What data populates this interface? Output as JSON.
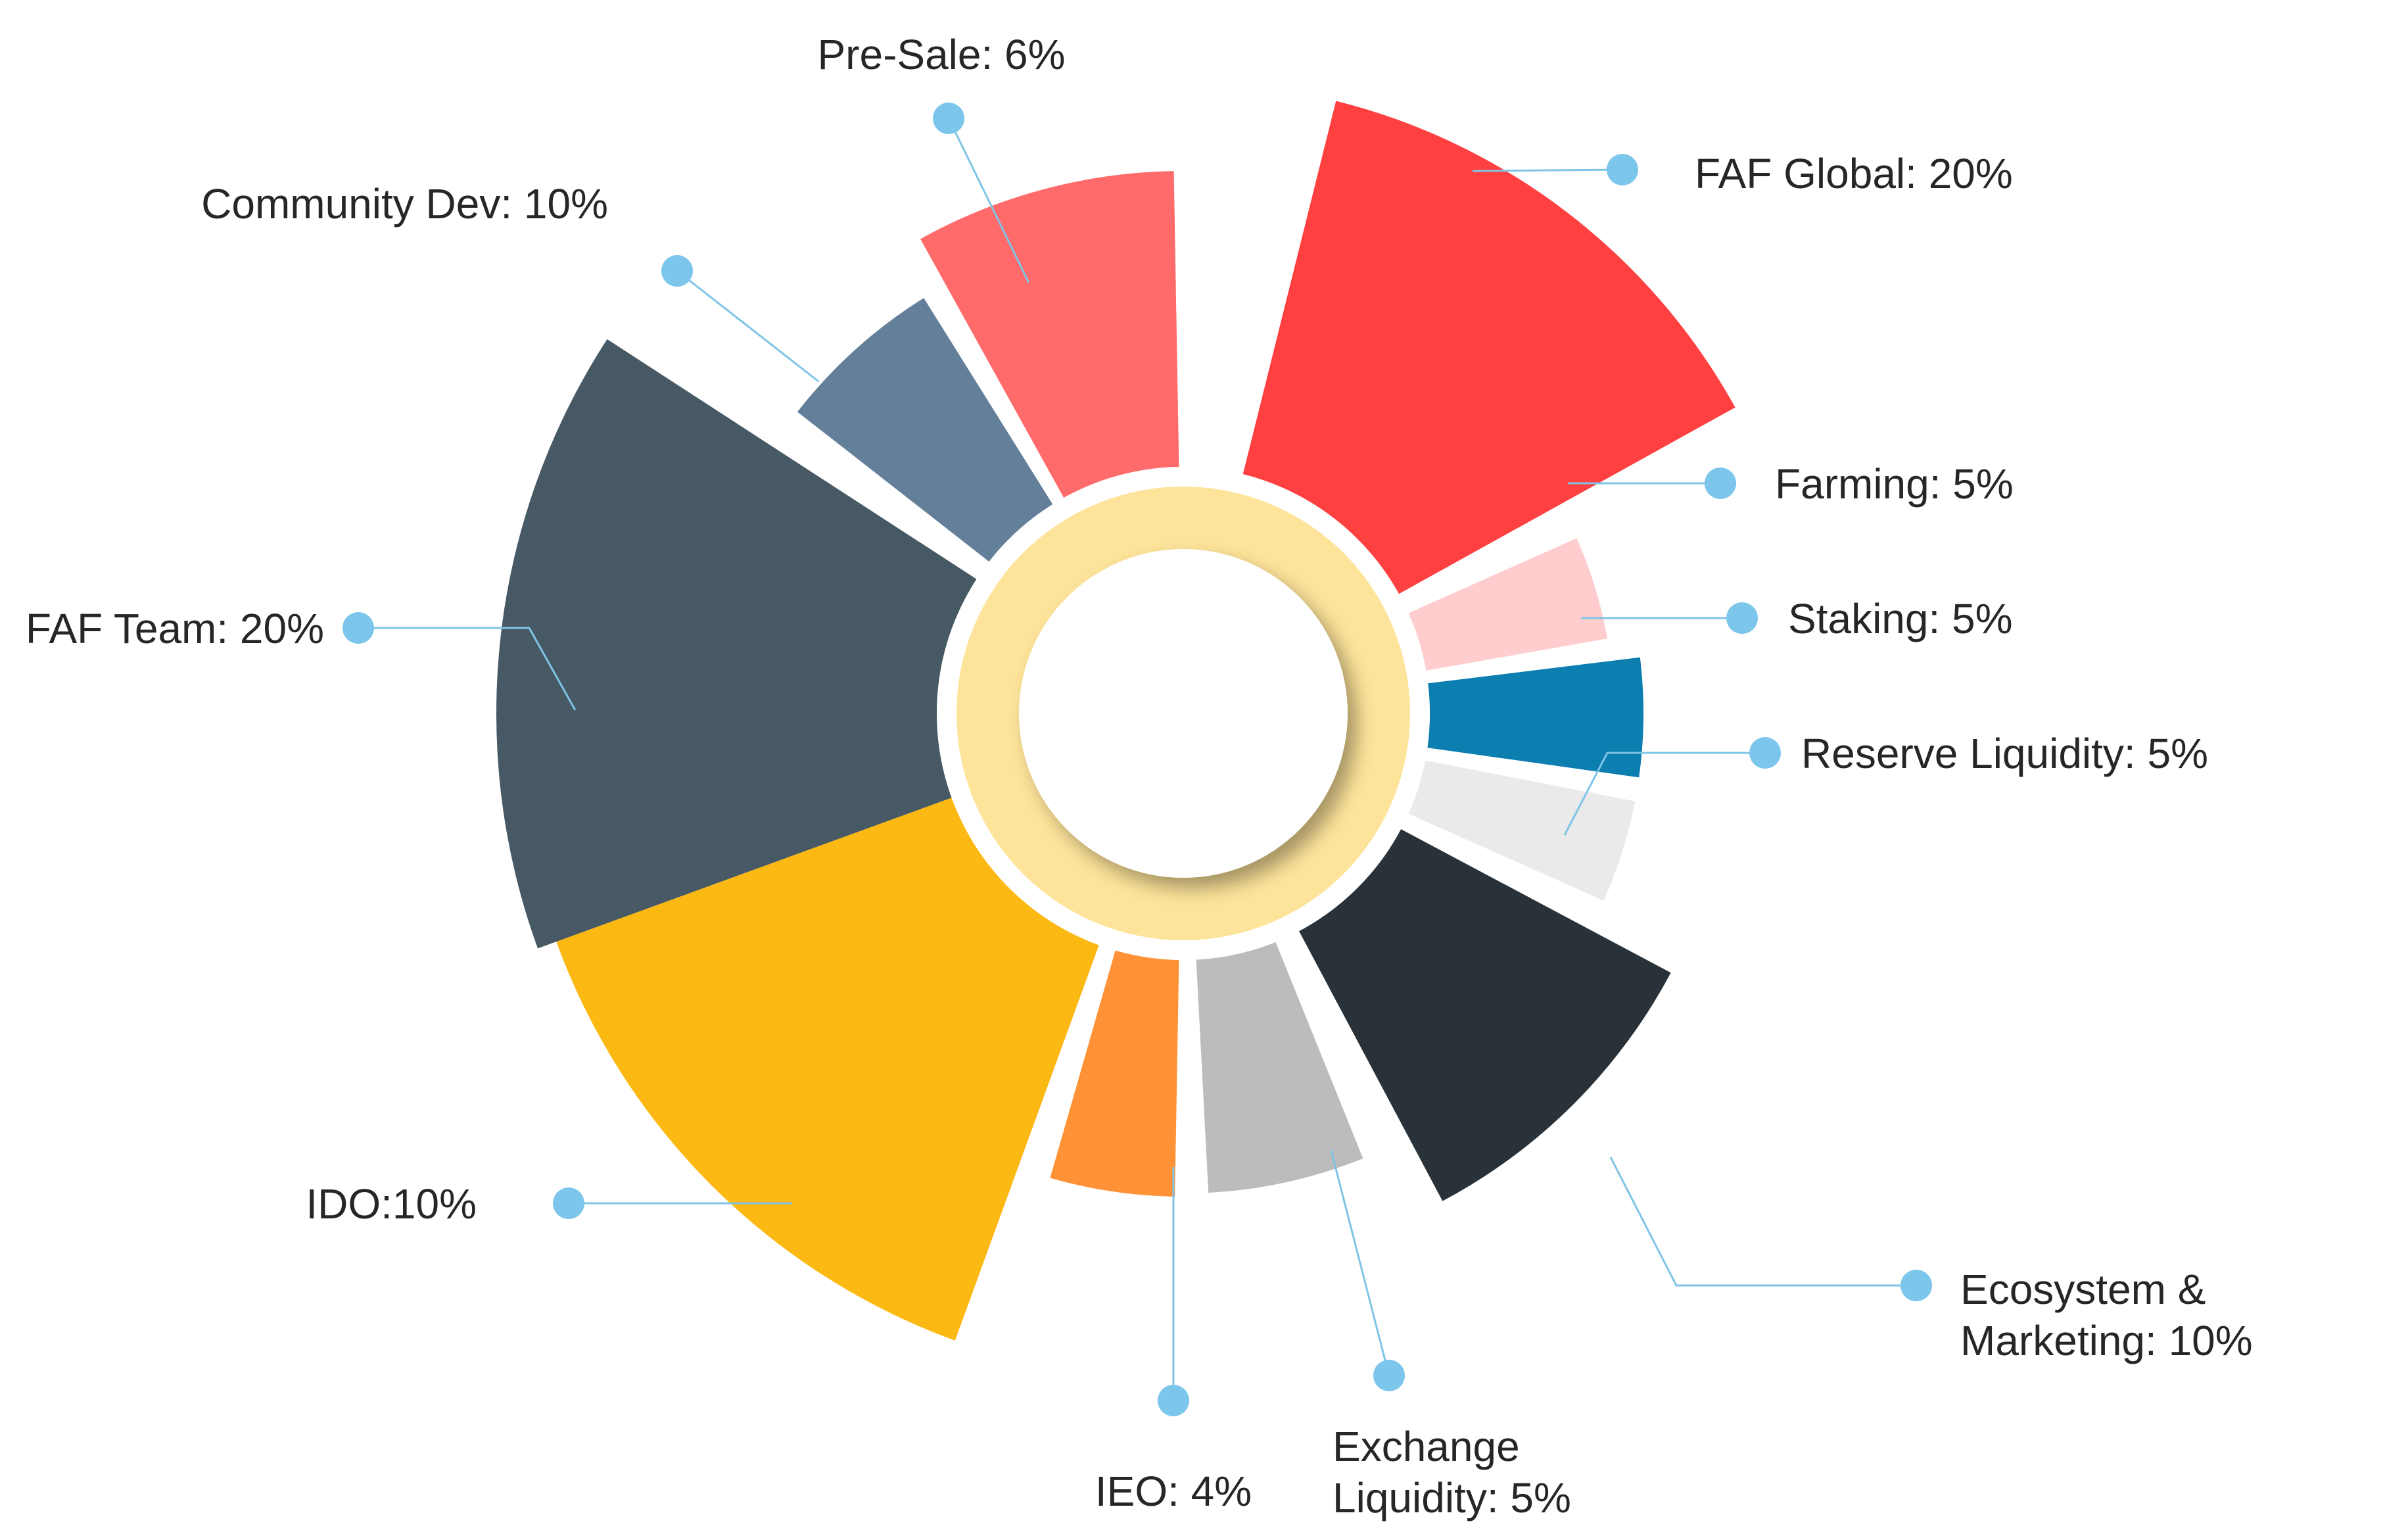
{
  "chart_data": {
    "type": "pie",
    "variant": "polar-area (rose) with inner ring",
    "title": "",
    "slices": [
      {
        "label_lines": [
          "FAF Global: 20%"
        ],
        "value": 20,
        "color": "#ff4040"
      },
      {
        "label_lines": [
          "Farming: 5%"
        ],
        "value": 5,
        "color": "#ffcdcd"
      },
      {
        "label_lines": [
          "Staking: 5%"
        ],
        "value": 5,
        "color": "#0d7eb0"
      },
      {
        "label_lines": [
          "Reserve Liquidity: 5%"
        ],
        "value": 5,
        "color": "#eaeaea"
      },
      {
        "label_lines": [
          "Ecosystem &",
          "Marketing: 10%"
        ],
        "value": 10,
        "color": "#283238"
      },
      {
        "label_lines": [
          "Exchange",
          "Liquidity: 5%"
        ],
        "value": 5,
        "color": "#bcbcbc"
      },
      {
        "label_lines": [
          "IEO: 4%"
        ],
        "value": 4,
        "color": "#ff9236"
      },
      {
        "label_lines": [
          "IDO:10%"
        ],
        "value": 10,
        "color": "#fdb913"
      },
      {
        "label_lines": [
          "FAF Team: 20%"
        ],
        "value": 20,
        "color": "#465964"
      },
      {
        "label_lines": [
          "Community Dev: 10%"
        ],
        "value": 10,
        "color": "#637f99"
      },
      {
        "label_lines": [
          "Pre-Sale: 6%"
        ],
        "value": 6,
        "color": "#ff6b6b"
      }
    ],
    "ring_color": "#fee49a",
    "legend": "none"
  }
}
